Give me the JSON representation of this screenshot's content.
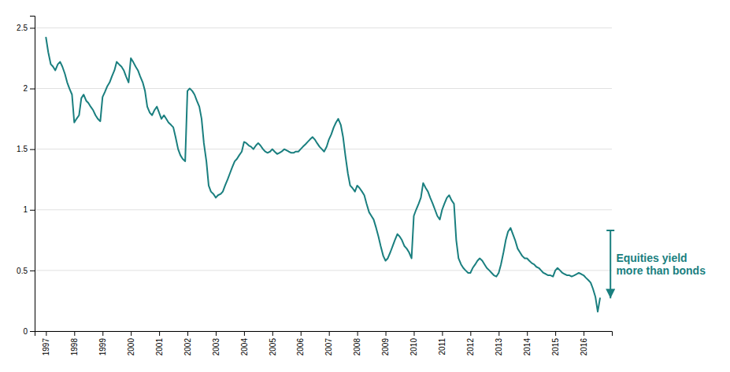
{
  "chart_data": {
    "type": "line",
    "color": "#1a7f7f",
    "grid": true,
    "xlim": [
      1996.6,
      2017.0
    ],
    "xticks": [
      1997,
      1998,
      1999,
      2000,
      2001,
      2002,
      2003,
      2004,
      2005,
      2006,
      2007,
      2008,
      2009,
      2010,
      2011,
      2012,
      2013,
      2014,
      2015,
      2016
    ],
    "ylim": [
      0,
      2.6
    ],
    "yticks": [
      0,
      0.5,
      1,
      1.5,
      2,
      2.5
    ],
    "x": [
      1997.0,
      1997.08,
      1997.17,
      1997.25,
      1997.33,
      1997.42,
      1997.5,
      1997.58,
      1997.67,
      1997.75,
      1997.83,
      1997.92,
      1998.0,
      1998.08,
      1998.17,
      1998.25,
      1998.33,
      1998.42,
      1998.5,
      1998.58,
      1998.67,
      1998.75,
      1998.83,
      1998.92,
      1999.0,
      1999.08,
      1999.17,
      1999.25,
      1999.33,
      1999.42,
      1999.5,
      1999.58,
      1999.67,
      1999.75,
      1999.83,
      1999.92,
      2000.0,
      2000.08,
      2000.17,
      2000.25,
      2000.33,
      2000.42,
      2000.5,
      2000.58,
      2000.67,
      2000.75,
      2000.83,
      2000.92,
      2001.0,
      2001.08,
      2001.17,
      2001.25,
      2001.33,
      2001.42,
      2001.5,
      2001.58,
      2001.67,
      2001.75,
      2001.83,
      2001.92,
      2002.0,
      2002.08,
      2002.17,
      2002.25,
      2002.33,
      2002.42,
      2002.5,
      2002.58,
      2002.67,
      2002.75,
      2002.83,
      2002.92,
      2003.0,
      2003.08,
      2003.17,
      2003.25,
      2003.33,
      2003.42,
      2003.5,
      2003.58,
      2003.67,
      2003.75,
      2003.83,
      2003.92,
      2004.0,
      2004.08,
      2004.17,
      2004.25,
      2004.33,
      2004.42,
      2004.5,
      2004.58,
      2004.67,
      2004.75,
      2004.83,
      2004.92,
      2005.0,
      2005.08,
      2005.17,
      2005.25,
      2005.33,
      2005.42,
      2005.5,
      2005.58,
      2005.67,
      2005.75,
      2005.83,
      2005.92,
      2006.0,
      2006.08,
      2006.17,
      2006.25,
      2006.33,
      2006.42,
      2006.5,
      2006.58,
      2006.67,
      2006.75,
      2006.83,
      2006.92,
      2007.0,
      2007.08,
      2007.17,
      2007.25,
      2007.33,
      2007.42,
      2007.5,
      2007.58,
      2007.67,
      2007.75,
      2007.83,
      2007.92,
      2008.0,
      2008.08,
      2008.17,
      2008.25,
      2008.33,
      2008.42,
      2008.5,
      2008.58,
      2008.67,
      2008.75,
      2008.83,
      2008.92,
      2009.0,
      2009.08,
      2009.17,
      2009.25,
      2009.33,
      2009.42,
      2009.5,
      2009.58,
      2009.67,
      2009.75,
      2009.83,
      2009.92,
      2010.0,
      2010.08,
      2010.17,
      2010.25,
      2010.33,
      2010.42,
      2010.5,
      2010.58,
      2010.67,
      2010.75,
      2010.83,
      2010.92,
      2011.0,
      2011.08,
      2011.17,
      2011.25,
      2011.33,
      2011.42,
      2011.5,
      2011.58,
      2011.67,
      2011.75,
      2011.83,
      2011.92,
      2012.0,
      2012.08,
      2012.17,
      2012.25,
      2012.33,
      2012.42,
      2012.5,
      2012.58,
      2012.67,
      2012.75,
      2012.83,
      2012.92,
      2013.0,
      2013.08,
      2013.17,
      2013.25,
      2013.33,
      2013.42,
      2013.5,
      2013.58,
      2013.67,
      2013.75,
      2013.83,
      2013.92,
      2014.0,
      2014.08,
      2014.17,
      2014.25,
      2014.33,
      2014.42,
      2014.5,
      2014.58,
      2014.67,
      2014.75,
      2014.83,
      2014.92,
      2015.0,
      2015.08,
      2015.17,
      2015.25,
      2015.33,
      2015.42,
      2015.5,
      2015.58,
      2015.67,
      2015.75,
      2015.83,
      2015.92,
      2016.0,
      2016.08,
      2016.17,
      2016.25,
      2016.33,
      2016.42,
      2016.5,
      2016.58
    ],
    "values": [
      2.42,
      2.3,
      2.2,
      2.18,
      2.15,
      2.2,
      2.22,
      2.18,
      2.12,
      2.05,
      2.0,
      1.95,
      1.72,
      1.75,
      1.78,
      1.92,
      1.95,
      1.9,
      1.88,
      1.85,
      1.82,
      1.78,
      1.75,
      1.73,
      1.93,
      1.97,
      2.02,
      2.05,
      2.1,
      2.15,
      2.22,
      2.2,
      2.18,
      2.15,
      2.1,
      2.05,
      2.25,
      2.22,
      2.18,
      2.15,
      2.1,
      2.05,
      1.98,
      1.85,
      1.8,
      1.78,
      1.82,
      1.85,
      1.8,
      1.75,
      1.78,
      1.75,
      1.72,
      1.7,
      1.68,
      1.6,
      1.5,
      1.45,
      1.42,
      1.4,
      1.98,
      2.0,
      1.98,
      1.95,
      1.9,
      1.85,
      1.75,
      1.55,
      1.4,
      1.2,
      1.15,
      1.13,
      1.1,
      1.12,
      1.13,
      1.15,
      1.2,
      1.25,
      1.3,
      1.35,
      1.4,
      1.42,
      1.45,
      1.48,
      1.56,
      1.55,
      1.53,
      1.52,
      1.5,
      1.53,
      1.55,
      1.53,
      1.5,
      1.48,
      1.47,
      1.48,
      1.5,
      1.48,
      1.46,
      1.47,
      1.48,
      1.5,
      1.49,
      1.48,
      1.47,
      1.47,
      1.48,
      1.48,
      1.5,
      1.52,
      1.54,
      1.56,
      1.58,
      1.6,
      1.58,
      1.55,
      1.52,
      1.5,
      1.48,
      1.52,
      1.58,
      1.62,
      1.68,
      1.72,
      1.75,
      1.7,
      1.6,
      1.45,
      1.3,
      1.2,
      1.18,
      1.15,
      1.2,
      1.18,
      1.15,
      1.12,
      1.05,
      0.98,
      0.95,
      0.92,
      0.85,
      0.78,
      0.7,
      0.62,
      0.58,
      0.6,
      0.65,
      0.7,
      0.75,
      0.8,
      0.78,
      0.75,
      0.7,
      0.68,
      0.65,
      0.6,
      0.95,
      1.0,
      1.05,
      1.1,
      1.22,
      1.18,
      1.15,
      1.1,
      1.05,
      1.0,
      0.95,
      0.92,
      1.0,
      1.05,
      1.1,
      1.12,
      1.08,
      1.05,
      0.75,
      0.6,
      0.55,
      0.52,
      0.5,
      0.48,
      0.48,
      0.52,
      0.55,
      0.58,
      0.6,
      0.58,
      0.55,
      0.52,
      0.5,
      0.48,
      0.46,
      0.45,
      0.48,
      0.55,
      0.65,
      0.75,
      0.82,
      0.85,
      0.8,
      0.75,
      0.68,
      0.65,
      0.62,
      0.6,
      0.6,
      0.58,
      0.56,
      0.55,
      0.53,
      0.52,
      0.5,
      0.48,
      0.47,
      0.46,
      0.46,
      0.45,
      0.5,
      0.52,
      0.5,
      0.48,
      0.47,
      0.46,
      0.46,
      0.45,
      0.46,
      0.47,
      0.48,
      0.47,
      0.46,
      0.44,
      0.42,
      0.4,
      0.35,
      0.28,
      0.16,
      0.27
    ],
    "annotations": [
      {
        "text": "Equities yield\nmore than bonds",
        "x": 2017.15,
        "y": 0.55,
        "arrow_x": 2016.95,
        "arrow_top": 0.83,
        "arrow_bottom": 0.27
      }
    ]
  }
}
